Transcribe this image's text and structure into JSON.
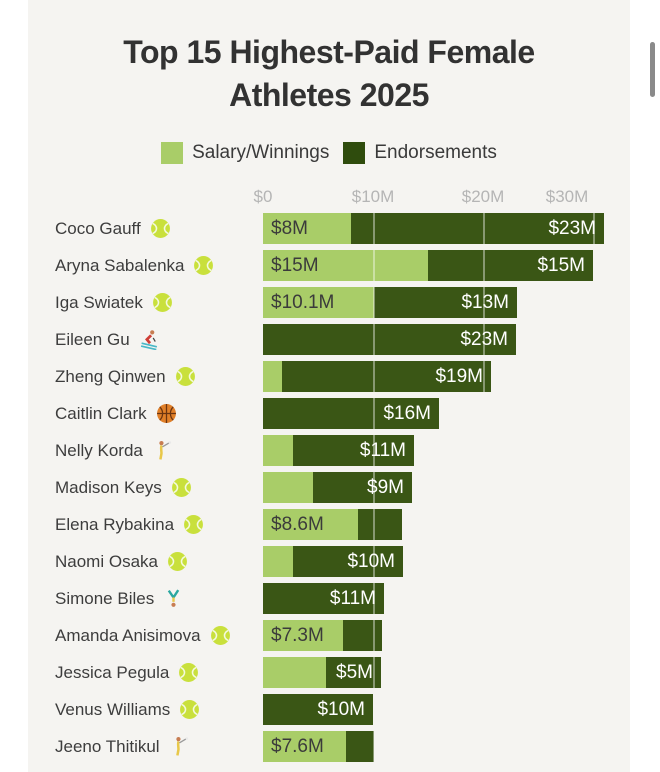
{
  "title": {
    "line1": "Top 15 Highest-Paid Female",
    "line2": "Athletes 2025"
  },
  "legend": [
    {
      "label": "Salary/Winnings",
      "color": "#a9cd68"
    },
    {
      "label": "Endorsements",
      "color": "#2f4c0d"
    }
  ],
  "axis": {
    "ticks": [
      "$0",
      "$10M",
      "$20M",
      "$30M"
    ],
    "tick_values": [
      0,
      10,
      20,
      30
    ]
  },
  "colors": {
    "page_background": "#ffffff",
    "card_background": "#f5f4f1",
    "salary_segment": "#a9cd68",
    "endorsements_segment": "#3a5615",
    "title_text": "#323232",
    "row_label_text": "#3d3d3d",
    "axis_text": "#b5b5b5",
    "value_on_light_text": "#3b3b3b",
    "value_on_dark_text": "#ffffff",
    "scrollbar": "#8a8a8a"
  },
  "chart_data": {
    "type": "bar",
    "orientation": "horizontal",
    "stacked": true,
    "title": "Top 15 Highest-Paid Female Athletes 2025",
    "unit": "USD millions",
    "xlim": [
      0,
      31
    ],
    "grid": true,
    "legend_position": "top",
    "series_names": [
      "Salary/Winnings",
      "Endorsements"
    ],
    "rows": [
      {
        "name": "Coco Gauff",
        "icon": "tennis-ball-icon",
        "salary": 8,
        "endorsements": 23,
        "salary_label": "$8M",
        "endorsements_label": "$23M"
      },
      {
        "name": "Aryna Sabalenka",
        "icon": "tennis-ball-icon",
        "salary": 15,
        "endorsements": 15,
        "salary_label": "$15M",
        "endorsements_label": "$15M"
      },
      {
        "name": "Iga Swiatek",
        "icon": "tennis-ball-icon",
        "salary": 10.1,
        "endorsements": 13,
        "salary_label": "$10.1M",
        "endorsements_label": "$13M"
      },
      {
        "name": "Eileen Gu",
        "icon": "skier-icon",
        "salary": 0,
        "endorsements": 23,
        "salary_label": "",
        "endorsements_label": "$23M"
      },
      {
        "name": "Zheng Qinwen",
        "icon": "tennis-ball-icon",
        "salary": 1.7,
        "endorsements": 19,
        "salary_label": "",
        "endorsements_label": "$19M"
      },
      {
        "name": "Caitlin Clark",
        "icon": "basketball-icon",
        "salary": 0,
        "endorsements": 16,
        "salary_label": "",
        "endorsements_label": "$16M"
      },
      {
        "name": "Nelly Korda",
        "icon": "woman-golfing-icon",
        "salary": 2.7,
        "endorsements": 11,
        "salary_label": "",
        "endorsements_label": "$11M"
      },
      {
        "name": "Madison Keys",
        "icon": "tennis-ball-icon",
        "salary": 4.5,
        "endorsements": 9,
        "salary_label": "",
        "endorsements_label": "$9M"
      },
      {
        "name": "Elena Rybakina",
        "icon": "tennis-ball-icon",
        "salary": 8.6,
        "endorsements": 4,
        "salary_label": "$8.6M",
        "endorsements_label": ""
      },
      {
        "name": "Naomi Osaka",
        "icon": "tennis-ball-icon",
        "salary": 2.7,
        "endorsements": 10,
        "salary_label": "",
        "endorsements_label": "$10M"
      },
      {
        "name": "Simone Biles",
        "icon": "cartwheel-icon",
        "salary": 0,
        "endorsements": 11,
        "salary_label": "",
        "endorsements_label": "$11M"
      },
      {
        "name": "Amanda Anisimova",
        "icon": "tennis-ball-icon",
        "salary": 7.3,
        "endorsements": 3.5,
        "salary_label": "$7.3M",
        "endorsements_label": ""
      },
      {
        "name": "Jessica Pegula",
        "icon": "tennis-ball-icon",
        "salary": 5.7,
        "endorsements": 5,
        "salary_label": "",
        "endorsements_label": "$5M"
      },
      {
        "name": "Venus Williams",
        "icon": "tennis-ball-icon",
        "salary": 0,
        "endorsements": 10,
        "salary_label": "",
        "endorsements_label": "$10M"
      },
      {
        "name": "Jeeno Thitikul",
        "icon": "woman-golfing-icon",
        "salary": 7.6,
        "endorsements": 2.5,
        "salary_label": "$7.6M",
        "endorsements_label": ""
      }
    ]
  }
}
